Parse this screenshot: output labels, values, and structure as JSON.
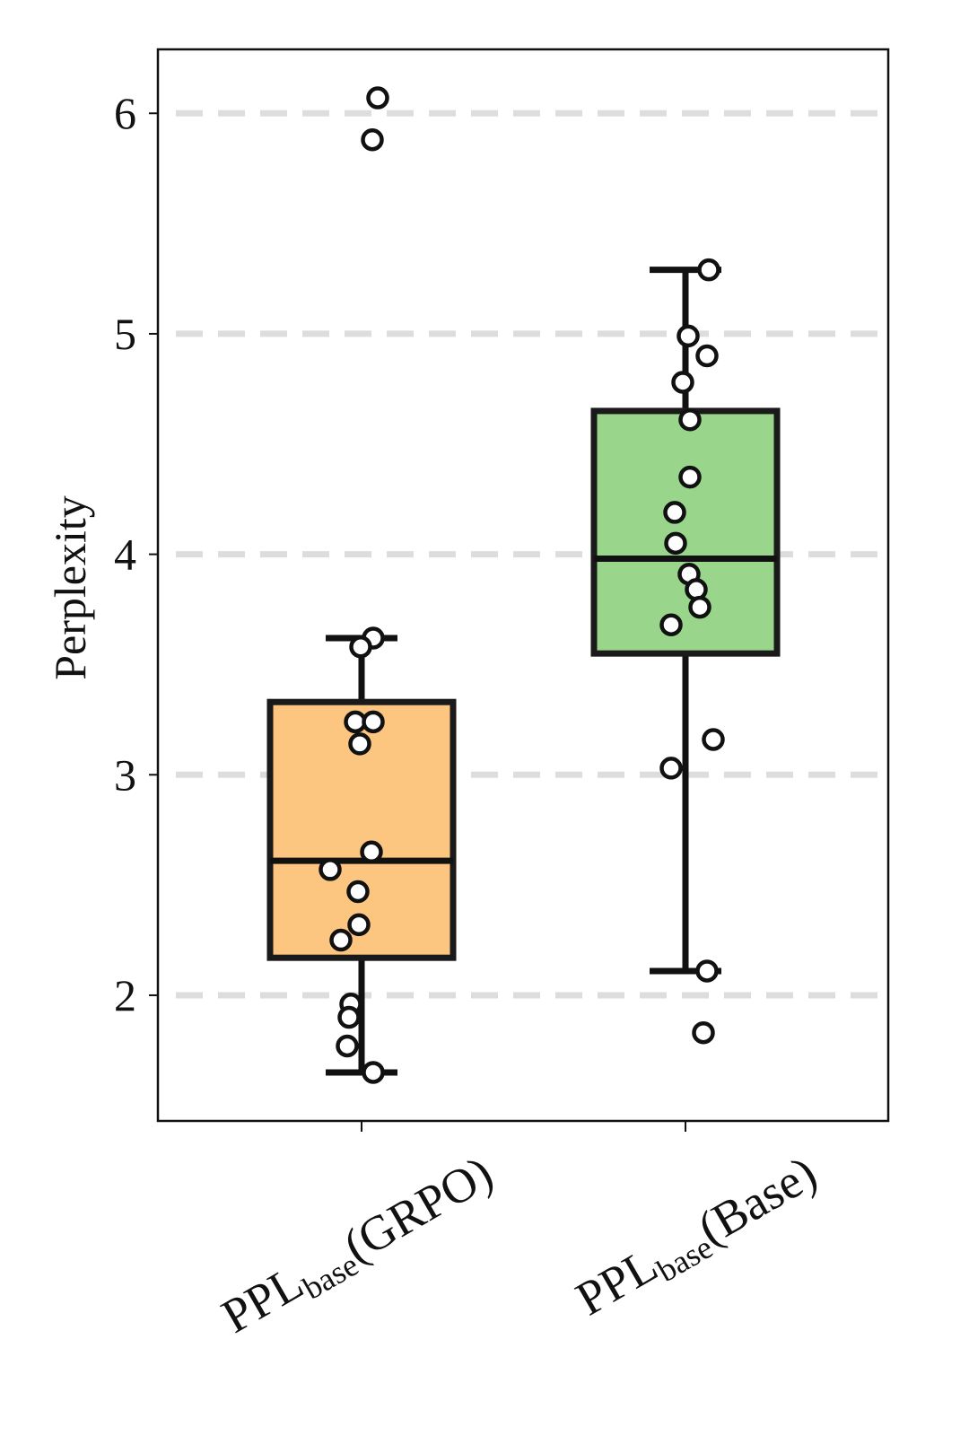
{
  "chart_data": {
    "type": "box",
    "ylabel": "Perplexity",
    "categories": [
      [
        "PPL",
        "base",
        "(GRPO)"
      ],
      [
        "PPL",
        "base",
        "(Base)"
      ]
    ],
    "boxes": [
      {
        "color": "#fdc680",
        "whislo": 1.65,
        "q1": 2.17,
        "med": 2.61,
        "q3": 3.33,
        "whishi": 3.62,
        "points": [
          6.07,
          5.88,
          3.62,
          3.58,
          3.24,
          3.24,
          3.14,
          2.65,
          2.57,
          2.47,
          2.32,
          2.25,
          1.96,
          1.9,
          1.77,
          1.65
        ]
      },
      {
        "color": "#99d68b",
        "whislo": 2.11,
        "q1": 3.55,
        "med": 3.98,
        "q3": 4.65,
        "whishi": 5.29,
        "points": [
          5.29,
          4.99,
          4.9,
          4.78,
          4.61,
          4.35,
          4.19,
          4.05,
          3.91,
          3.84,
          3.76,
          3.68,
          3.16,
          3.03,
          2.11,
          1.83
        ]
      }
    ],
    "ylim": [
      1.43,
      6.29
    ],
    "yticks": [
      2,
      3,
      4,
      5,
      6
    ],
    "grid": true
  }
}
